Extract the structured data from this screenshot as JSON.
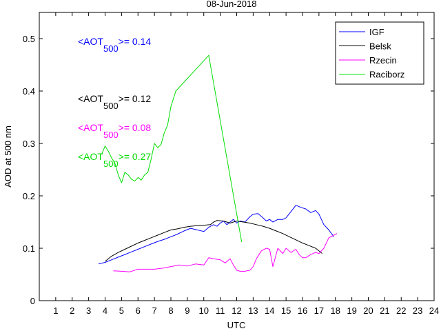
{
  "chart_data": {
    "type": "line",
    "title": "08-Jun-2018",
    "xlabel": "UTC",
    "ylabel": "AOD at 500 nm",
    "xlim": [
      0,
      24
    ],
    "ylim": [
      0,
      0.55
    ],
    "xticks": [
      1,
      2,
      3,
      4,
      5,
      6,
      7,
      8,
      9,
      10,
      11,
      12,
      13,
      14,
      15,
      16,
      17,
      18,
      19,
      20,
      21,
      22,
      23,
      24
    ],
    "yticks": [
      0,
      0.1,
      0.2,
      0.3,
      0.4,
      0.5
    ],
    "ytick_labels": [
      "0",
      "0.1",
      "0.2",
      "0.3",
      "0.4",
      "0.5"
    ],
    "grid": false,
    "legend_position": "top-right",
    "series": [
      {
        "name": "IGF",
        "color": "#0000ff",
        "x": [
          3.6,
          4.0,
          4.4,
          4.8,
          5.2,
          5.6,
          6.0,
          6.4,
          6.8,
          7.2,
          7.6,
          8.0,
          8.4,
          8.8,
          9.2,
          9.6,
          10.0,
          10.3,
          10.6,
          10.8,
          11.0,
          11.2,
          11.4,
          11.6,
          11.8,
          12.0,
          12.2,
          12.5,
          12.8,
          13.0,
          13.3,
          13.6,
          13.8,
          14.0,
          14.2,
          14.5,
          14.8,
          15.0,
          15.3,
          15.6,
          15.9,
          16.2,
          16.5,
          16.8,
          17.0,
          17.3,
          17.6,
          17.9
        ],
        "y": [
          0.07,
          0.073,
          0.078,
          0.083,
          0.088,
          0.093,
          0.098,
          0.103,
          0.108,
          0.113,
          0.117,
          0.122,
          0.127,
          0.133,
          0.138,
          0.135,
          0.132,
          0.14,
          0.145,
          0.142,
          0.148,
          0.152,
          0.145,
          0.15,
          0.155,
          0.148,
          0.152,
          0.15,
          0.16,
          0.165,
          0.166,
          0.158,
          0.152,
          0.155,
          0.15,
          0.155,
          0.155,
          0.158,
          0.17,
          0.182,
          0.178,
          0.175,
          0.168,
          0.172,
          0.165,
          0.145,
          0.135,
          0.122
        ]
      },
      {
        "name": "Belsk",
        "color": "#000000",
        "x": [
          4.0,
          4.4,
          4.8,
          5.2,
          5.6,
          6.0,
          6.4,
          6.8,
          7.2,
          7.6,
          8.0,
          8.4,
          8.8,
          9.2,
          9.6,
          10.0,
          10.4,
          10.6,
          10.8,
          11.2,
          11.6,
          12.0,
          12.4,
          12.8,
          13.2,
          13.6,
          14.0,
          14.4,
          14.8,
          15.2,
          15.6,
          16.0,
          16.4,
          16.8,
          17.2
        ],
        "y": [
          0.075,
          0.085,
          0.092,
          0.098,
          0.104,
          0.11,
          0.115,
          0.12,
          0.125,
          0.13,
          0.135,
          0.137,
          0.14,
          0.142,
          0.143,
          0.144,
          0.145,
          0.15,
          0.153,
          0.152,
          0.148,
          0.152,
          0.15,
          0.148,
          0.145,
          0.142,
          0.138,
          0.133,
          0.128,
          0.122,
          0.116,
          0.11,
          0.105,
          0.1,
          0.09
        ]
      },
      {
        "name": "Rzecin",
        "color": "#ff00ff",
        "x": [
          4.5,
          5.0,
          5.5,
          6.0,
          6.5,
          7.0,
          7.5,
          8.0,
          8.5,
          9.0,
          9.5,
          10.0,
          10.3,
          10.6,
          11.0,
          11.3,
          11.6,
          11.8,
          12.0,
          12.2,
          12.5,
          12.8,
          13.0,
          13.2,
          13.5,
          13.8,
          14.0,
          14.2,
          14.5,
          14.8,
          15.0,
          15.3,
          15.6,
          15.8,
          16.0,
          16.2,
          16.5,
          16.8,
          17.0,
          17.3,
          17.6,
          17.9,
          18.1
        ],
        "y": [
          0.057,
          0.056,
          0.055,
          0.06,
          0.06,
          0.06,
          0.062,
          0.065,
          0.068,
          0.066,
          0.07,
          0.068,
          0.082,
          0.08,
          0.078,
          0.072,
          0.08,
          0.068,
          0.058,
          0.056,
          0.056,
          0.058,
          0.065,
          0.08,
          0.095,
          0.1,
          0.098,
          0.065,
          0.1,
          0.09,
          0.1,
          0.092,
          0.098,
          0.088,
          0.082,
          0.082,
          0.088,
          0.092,
          0.09,
          0.1,
          0.12,
          0.125,
          0.128
        ]
      },
      {
        "name": "Raciborz",
        "color": "#00dd00",
        "x": [
          3.8,
          4.0,
          4.2,
          4.4,
          4.6,
          4.8,
          5.0,
          5.2,
          5.4,
          5.6,
          5.8,
          6.0,
          6.2,
          6.4,
          6.6,
          6.8,
          7.0,
          7.2,
          7.4,
          7.6,
          7.8,
          8.0,
          8.3,
          10.3,
          12.3
        ],
        "y": [
          0.28,
          0.295,
          0.285,
          0.272,
          0.262,
          0.24,
          0.225,
          0.245,
          0.24,
          0.232,
          0.228,
          0.235,
          0.23,
          0.24,
          0.245,
          0.27,
          0.3,
          0.292,
          0.298,
          0.32,
          0.335,
          0.37,
          0.4,
          0.468,
          0.112
        ]
      }
    ],
    "annotations": [
      {
        "prefix": "<AOT",
        "sub": "500",
        "suffix": ">= 0.14",
        "color": "#0000ff"
      },
      {
        "prefix": "<AOT",
        "sub": "500",
        "suffix": ">= 0.12",
        "color": "#000000"
      },
      {
        "prefix": "<AOT",
        "sub": "500",
        "suffix": ">= 0.08",
        "color": "#ff00ff"
      },
      {
        "prefix": "<AOT",
        "sub": "500",
        "suffix": ">= 0.27",
        "color": "#00dd00"
      }
    ]
  }
}
